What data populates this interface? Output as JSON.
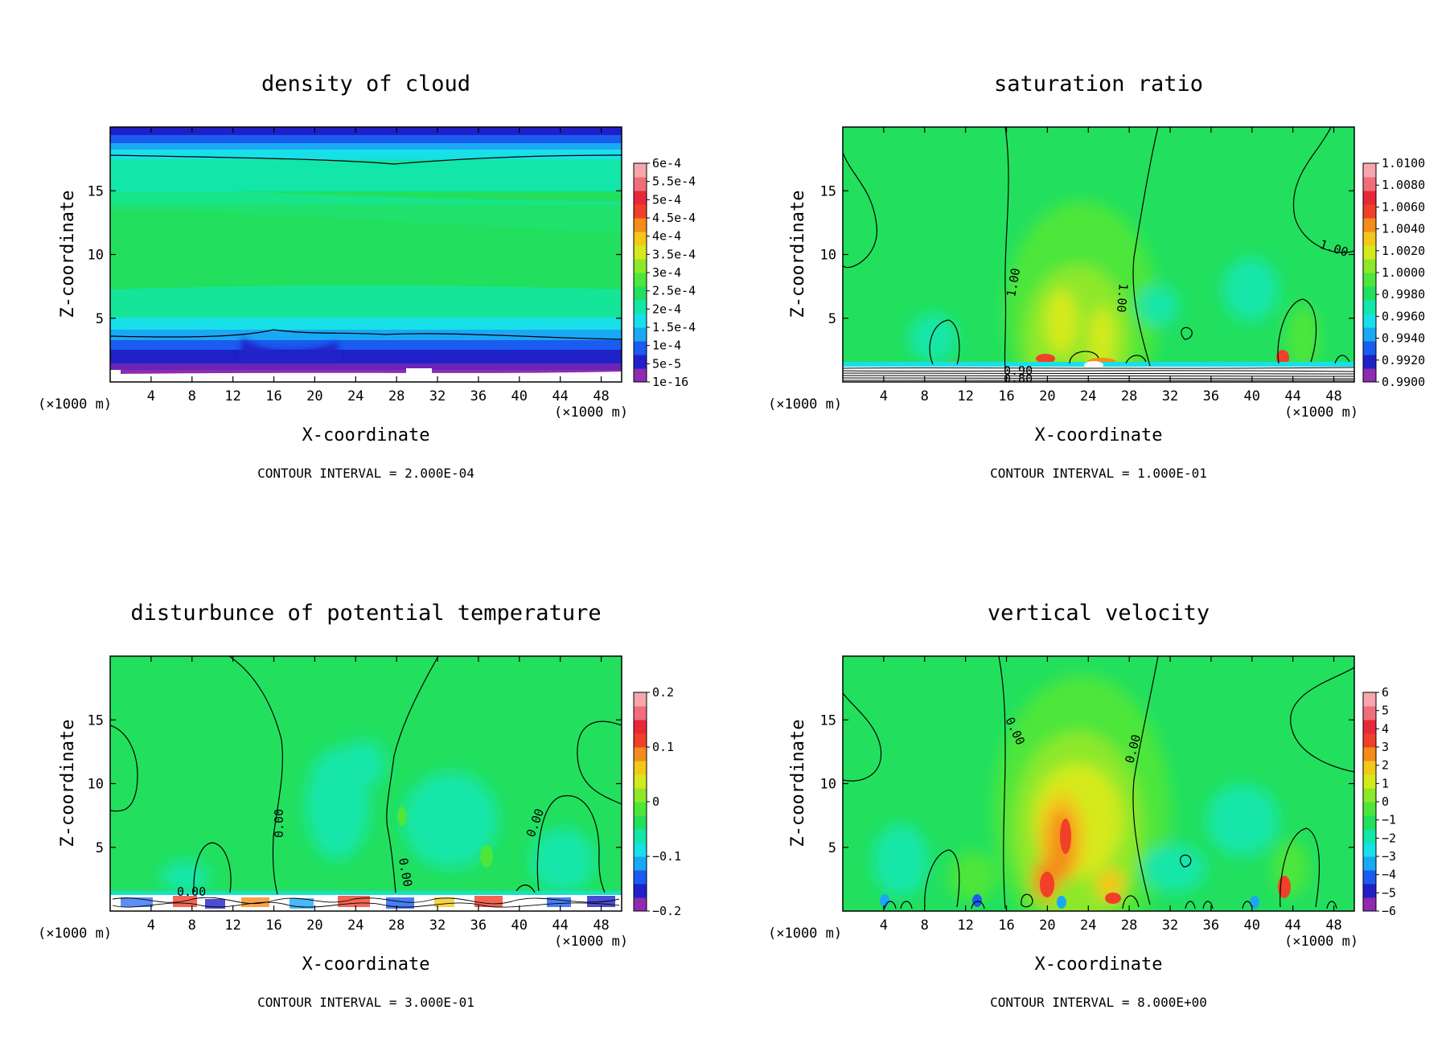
{
  "x_unit": "(×1000 m)",
  "colorscale": [
    "#8e2bb0",
    "#2020c8",
    "#1a5cf0",
    "#1aa8f5",
    "#18e0e8",
    "#12e6a8",
    "#22e05e",
    "#4ee63a",
    "#8ee82a",
    "#d4ea1e",
    "#f2c81a",
    "#f48c1a",
    "#f0402a",
    "#e8283a",
    "#f06e7a",
    "#f7a6ae"
  ],
  "chart_data": [
    {
      "type": "heatmap",
      "title": "density of cloud",
      "xlabel": "X-coordinate",
      "ylabel": "Z-coordinate",
      "xticks": [
        4,
        8,
        12,
        16,
        20,
        24,
        28,
        32,
        36,
        40,
        44,
        48
      ],
      "yticks": [
        5,
        10,
        15
      ],
      "xlim": [
        0,
        50
      ],
      "ylim": [
        0,
        20
      ],
      "contour_interval": "CONTOUR INTERVAL = 2.000E-04",
      "colorbar_labels": [
        "6e-4",
        "5.5e-4",
        "5e-4",
        "4.5e-4",
        "4e-4",
        "3.5e-4",
        "3e-4",
        "2.5e-4",
        "2e-4",
        "1.5e-4",
        "1e-4",
        "5e-5",
        "1e-16"
      ],
      "contour_labels": []
    },
    {
      "type": "heatmap",
      "title": "saturation ratio",
      "xlabel": "X-coordinate",
      "ylabel": "Z-coordinate",
      "xticks": [
        4,
        8,
        12,
        16,
        20,
        24,
        28,
        32,
        36,
        40,
        44,
        48
      ],
      "yticks": [
        5,
        10,
        15
      ],
      "xlim": [
        0,
        50
      ],
      "ylim": [
        0,
        20
      ],
      "contour_interval": "CONTOUR INTERVAL = 1.000E-01",
      "colorbar_labels": [
        "1.0100",
        "1.0080",
        "1.0060",
        "1.0040",
        "1.0020",
        "1.0000",
        "0.9980",
        "0.9960",
        "0.9940",
        "0.9920",
        "0.9900"
      ],
      "contour_labels": [
        "1.00",
        "1.00",
        "1.00",
        "0.90",
        "0.80"
      ]
    },
    {
      "type": "heatmap",
      "title": "disturbunce of potential temperature",
      "xlabel": "X-coordinate",
      "ylabel": "Z-coordinate",
      "xticks": [
        4,
        8,
        12,
        16,
        20,
        24,
        28,
        32,
        36,
        40,
        44,
        48
      ],
      "yticks": [
        5,
        10,
        15
      ],
      "xlim": [
        0,
        50
      ],
      "ylim": [
        0,
        20
      ],
      "contour_interval": "CONTOUR INTERVAL = 3.000E-01",
      "colorbar_labels": [
        "0.2",
        "0.1",
        "0",
        "−0.1",
        "−0.2"
      ],
      "contour_labels": [
        "0.00",
        "0.00",
        "0.00",
        "0.00"
      ]
    },
    {
      "type": "heatmap",
      "title": "vertical velocity",
      "xlabel": "X-coordinate",
      "ylabel": "Z-coordinate",
      "xticks": [
        4,
        8,
        12,
        16,
        20,
        24,
        28,
        32,
        36,
        40,
        44,
        48
      ],
      "yticks": [
        5,
        10,
        15
      ],
      "xlim": [
        0,
        50
      ],
      "ylim": [
        0,
        20
      ],
      "contour_interval": "CONTOUR INTERVAL = 8.000E+00",
      "colorbar_labels": [
        "6",
        "5",
        "4",
        "3",
        "2",
        "1",
        "0",
        "−1",
        "−2",
        "−3",
        "−4",
        "−5",
        "−6"
      ],
      "contour_labels": [
        "0.00",
        "0.00"
      ]
    }
  ]
}
